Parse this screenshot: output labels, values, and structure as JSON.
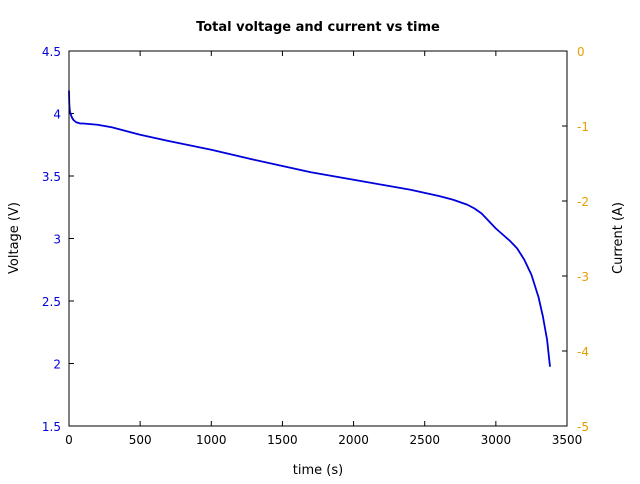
{
  "chart_data": {
    "type": "line",
    "title": "Total voltage and current vs time",
    "xlabel": "time (s)",
    "ylabel_left": "Voltage (V)",
    "ylabel_right": "Current (A)",
    "xlim": [
      0,
      3500
    ],
    "ylim_left": [
      1.5,
      4.5
    ],
    "ylim_right": [
      -5,
      0
    ],
    "x_ticks": [
      "0",
      "500",
      "1000",
      "1500",
      "2000",
      "2500",
      "3000",
      "3500"
    ],
    "y_ticks_left": [
      "1.5",
      "2",
      "2.5",
      "3",
      "3.5",
      "4",
      "4.5"
    ],
    "y_ticks_right": [
      "-5",
      "-4",
      "-3",
      "-2",
      "-1",
      "0"
    ],
    "grid": false,
    "colors": {
      "voltage": "#0000dd",
      "current_axis": "#e69f00",
      "axes": "#000000"
    },
    "series": [
      {
        "axis": "left",
        "color": "#0000dd",
        "x": [
          0,
          2,
          5,
          10,
          20,
          30,
          50,
          80,
          100,
          150,
          200,
          300,
          400,
          500,
          700,
          1000,
          1300,
          1500,
          1700,
          2000,
          2200,
          2400,
          2600,
          2700,
          2800,
          2850,
          2900,
          2950,
          3000,
          3050,
          3100,
          3150,
          3200,
          3250,
          3300,
          3330,
          3360,
          3380
        ],
        "values": [
          4.18,
          4.08,
          4.03,
          4.0,
          3.97,
          3.95,
          3.93,
          3.92,
          3.92,
          3.915,
          3.91,
          3.89,
          3.86,
          3.83,
          3.78,
          3.71,
          3.63,
          3.58,
          3.53,
          3.47,
          3.43,
          3.39,
          3.34,
          3.31,
          3.27,
          3.24,
          3.2,
          3.14,
          3.08,
          3.03,
          2.98,
          2.92,
          2.83,
          2.71,
          2.53,
          2.38,
          2.19,
          1.98
        ]
      }
    ]
  }
}
